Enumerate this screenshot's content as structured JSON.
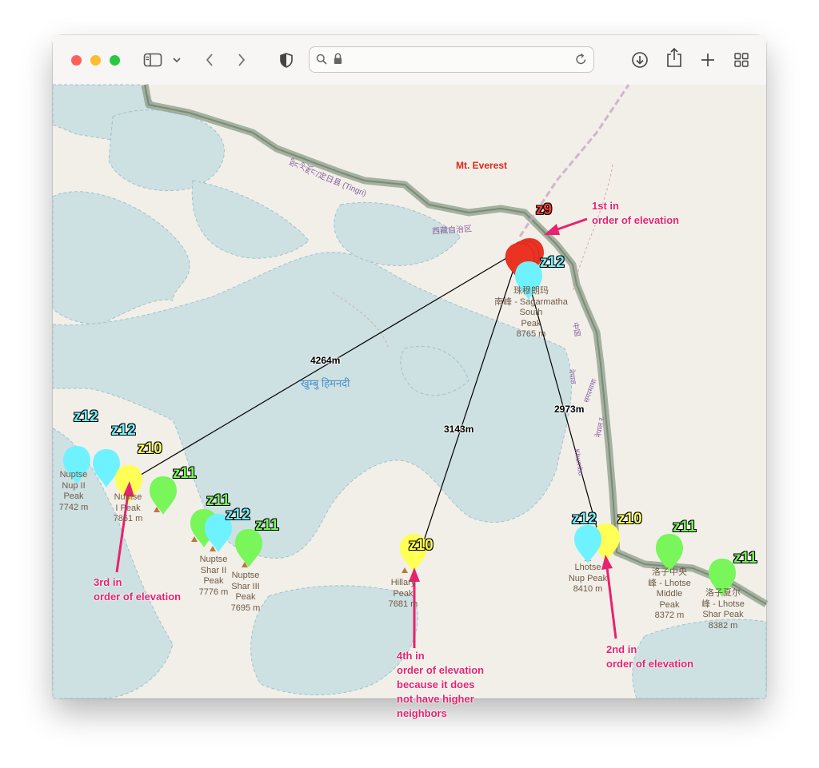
{
  "browser": {
    "traffic_lights": {
      "close": "#ff5f57",
      "minimize": "#febc2e",
      "zoom": "#28c840"
    },
    "icons": [
      "sidebar-icon",
      "chevron-down-icon",
      "back-icon",
      "forward-icon",
      "shield-icon",
      "search-icon",
      "lock-icon",
      "reload-icon",
      "download-icon",
      "share-icon",
      "plus-icon",
      "tab-overview-icon"
    ],
    "address": ""
  },
  "map": {
    "title_label": "Mt. Everest",
    "region_labels": {
      "tingri": "ཐིང་རི་རྫོང་/定日县 (Tingri)",
      "tibet": "西藏自治区",
      "khumbu": "खुम्बु हिमनदी",
      "khumbu_road": "Khumbu",
      "china": "中国",
      "nepal": "नेपाल",
      "sagarmatha": "सगरमाथा",
      "nepal2": "नेपाल र."
    },
    "peaks": [
      {
        "id": "south",
        "label": "珠穆朗玛\n南峰 - Sagarmatha\nSouth\nPeak\n8765 m"
      },
      {
        "id": "nuptse-nup-ii",
        "label": "Nuptse\nNup II\nPeak\n7742 m"
      },
      {
        "id": "nuptse-i",
        "label": "Nuptse\nI Peak\n7861 m"
      },
      {
        "id": "nuptse-shar-ii",
        "label": "Nuptse\nShar II\nPeak\n7776 m"
      },
      {
        "id": "nuptse-shar-iii",
        "label": "Nuptse\nShar III\nPeak\n7695 m"
      },
      {
        "id": "hillary",
        "label": "Hillary\nPeak\n7681 m"
      },
      {
        "id": "lhotse-nup",
        "label": "Lhotse\nNup Peak\n8410 m"
      },
      {
        "id": "lhotse-middle",
        "label": "洛子中央\n峰 - Lhotse\nMiddle\nPeak\n8372 m"
      },
      {
        "id": "lhotse-shar",
        "label": "洛子夏尔\n峰 - Lhotse\nShar Peak\n8382 m"
      }
    ],
    "zoom_labels": [
      {
        "id": "everest",
        "text": "z9",
        "color": "#ff3a2a"
      },
      {
        "id": "south",
        "text": "z12",
        "color": "#6ff2ff"
      },
      {
        "id": "nup2",
        "text": "z12",
        "color": "#6ff2ff"
      },
      {
        "id": "nuptse-cyan",
        "text": "z12",
        "color": "#6ff2ff"
      },
      {
        "id": "nuptse-i",
        "text": "z10",
        "color": "#ffff55"
      },
      {
        "id": "green1",
        "text": "z11",
        "color": "#78f65a"
      },
      {
        "id": "green2",
        "text": "z11",
        "color": "#78f65a"
      },
      {
        "id": "shar-cyan",
        "text": "z12",
        "color": "#6ff2ff"
      },
      {
        "id": "green3",
        "text": "z11",
        "color": "#78f65a"
      },
      {
        "id": "hillary",
        "text": "z10",
        "color": "#ffff55"
      },
      {
        "id": "lhotse-cyan",
        "text": "z12",
        "color": "#6ff2ff"
      },
      {
        "id": "lhotse-yellow",
        "text": "z10",
        "color": "#ffff55"
      },
      {
        "id": "lhotse-middle",
        "text": "z11",
        "color": "#78f65a"
      },
      {
        "id": "lhotse-shar",
        "text": "z11",
        "color": "#78f65a"
      }
    ],
    "distances": {
      "nuptse": "4264m",
      "hillary": "3143m",
      "lhotse": "2973m"
    },
    "annotations": {
      "first": "1st in\norder of elevation",
      "second": "2nd in\norder of elevation",
      "third": "3rd in\norder of elevation",
      "fourth": "4th in\norder of elevation\nbecause it does\nnot have higher\nneighbors"
    },
    "colors": {
      "water": "#cde0e2",
      "land": "#f2efe9",
      "border": "#7f8f7a",
      "annotation": "#e6236e",
      "everest": "#ea3323"
    }
  }
}
